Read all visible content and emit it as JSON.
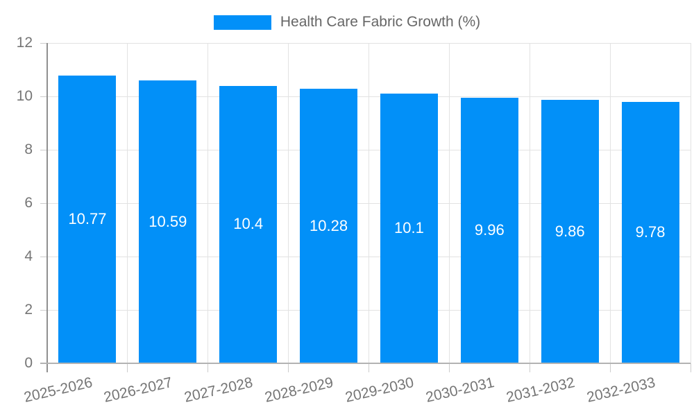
{
  "chart_data": {
    "type": "bar",
    "title": "",
    "series_name": "Health Care Fabric Growth (%)",
    "categories": [
      "2025-2026",
      "2026-2027",
      "2027-2028",
      "2028-2029",
      "2029-2030",
      "2030-2031",
      "2031-2032",
      "2032-2033"
    ],
    "values": [
      10.77,
      10.59,
      10.4,
      10.28,
      10.1,
      9.96,
      9.86,
      9.78
    ],
    "value_labels": [
      "10.77",
      "10.59",
      "10.4",
      "10.28",
      "10.1",
      "9.96",
      "9.86",
      "9.78"
    ],
    "xlabel": "",
    "ylabel": "",
    "ylim": [
      0,
      12
    ],
    "yticks": [
      0,
      2,
      4,
      6,
      8,
      10,
      12
    ],
    "grid": true,
    "legend_position": "top",
    "x_label_rotation_deg": -13,
    "colors": {
      "bar": "#0290f8",
      "value_label": "#ffffff",
      "axis_text": "#757575",
      "legend_text": "#666666",
      "gridline": "#e2e2e2",
      "tick": "#cccccc",
      "y_axis_line": "#909090",
      "x_axis_line": "#b3b3b3",
      "background": "#ffffff"
    }
  }
}
